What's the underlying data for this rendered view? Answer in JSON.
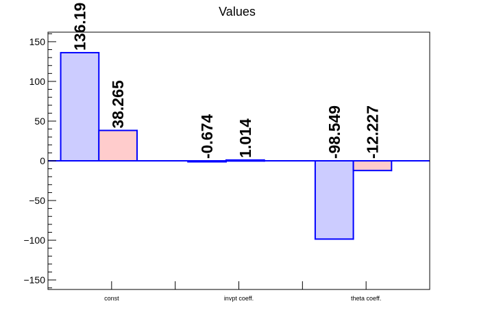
{
  "chart_data": {
    "type": "bar",
    "title": "Values",
    "xlabel": "",
    "ylabel": "",
    "categories": [
      "const",
      "invpt coeff.",
      "theta coeff."
    ],
    "series": [
      {
        "values": [
          136.19,
          -0.674,
          -98.549
        ],
        "labels": [
          "136.19",
          "-0.674",
          "-98.549"
        ]
      },
      {
        "values": [
          38.265,
          1.014,
          -12.227
        ],
        "labels": [
          "38.265",
          "1.014",
          "-12.227"
        ]
      }
    ],
    "y_ticks": [
      "150",
      "100",
      "50",
      "0",
      "−50",
      "−100",
      "−150"
    ],
    "ylim": [
      -162,
      162
    ],
    "grid": false,
    "legend": "none",
    "colors": {
      "series": [
        "#ccccff",
        "#ffcccc"
      ],
      "bar_outline": "#0000ff",
      "axis": "#000000"
    }
  }
}
